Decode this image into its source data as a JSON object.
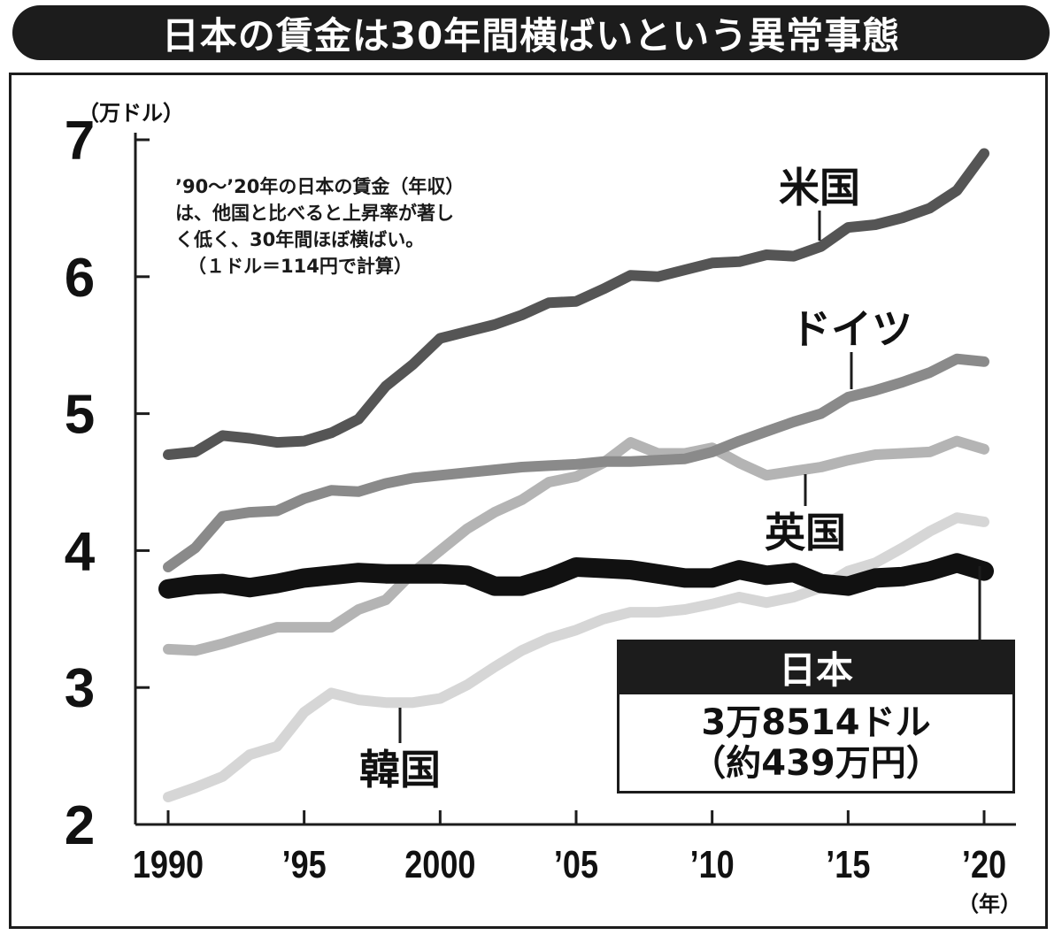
{
  "title": "日本の賃金は30年間横ばいという異常事態",
  "note": [
    "’90～’20年の日本の賃金（年収）",
    "は、他国と比べると上昇率が著し",
    "く低く、30年間ほぼ横ばい。",
    "（１ドル＝114円で計算）"
  ],
  "callout": {
    "heading": "日本",
    "value_line": "3万8514ドル",
    "yen_line": "（約439万円）"
  },
  "colors": {
    "米国": "#555555",
    "ドイツ": "#8a8a8a",
    "英国": "#b4b4b4",
    "韓国": "#d6d6d6",
    "日本": "#111111"
  },
  "chart_data": {
    "type": "line",
    "ylabel": "（万ドル）",
    "xlabel": "（年）",
    "ylim": [
      2,
      7
    ],
    "yticks": [
      "2",
      "3",
      "4",
      "5",
      "6",
      "7"
    ],
    "x_ticks": [
      {
        "year": 1990,
        "label": "1990"
      },
      {
        "year": 1995,
        "label": "’95"
      },
      {
        "year": 2000,
        "label": "2000"
      },
      {
        "year": 2005,
        "label": "’05"
      },
      {
        "year": 2010,
        "label": "’10"
      },
      {
        "year": 2015,
        "label": "’15"
      },
      {
        "year": 2020,
        "label": "’20"
      }
    ],
    "x": [
      1990,
      1991,
      1992,
      1993,
      1994,
      1995,
      1996,
      1997,
      1998,
      1999,
      2000,
      2001,
      2002,
      2003,
      2004,
      2005,
      2006,
      2007,
      2008,
      2009,
      2010,
      2011,
      2012,
      2013,
      2014,
      2015,
      2016,
      2017,
      2018,
      2019,
      2020
    ],
    "grid": false,
    "series": [
      {
        "name": "米国",
        "values": [
          4.7,
          4.72,
          4.84,
          4.82,
          4.79,
          4.8,
          4.86,
          4.96,
          5.2,
          5.36,
          5.55,
          5.6,
          5.65,
          5.72,
          5.81,
          5.82,
          5.91,
          6.01,
          6.0,
          6.05,
          6.1,
          6.11,
          6.16,
          6.15,
          6.22,
          6.36,
          6.38,
          6.43,
          6.5,
          6.63,
          6.9
        ]
      },
      {
        "name": "ドイツ",
        "values": [
          3.88,
          4.02,
          4.25,
          4.28,
          4.29,
          4.38,
          4.44,
          4.43,
          4.49,
          4.53,
          4.55,
          4.57,
          4.59,
          4.61,
          4.62,
          4.63,
          4.65,
          4.65,
          4.66,
          4.67,
          4.72,
          4.8,
          4.87,
          4.94,
          5.0,
          5.12,
          5.17,
          5.23,
          5.3,
          5.4,
          5.38
        ]
      },
      {
        "name": "英国",
        "values": [
          3.28,
          3.27,
          3.32,
          3.38,
          3.44,
          3.44,
          3.44,
          3.57,
          3.64,
          3.84,
          4.0,
          4.16,
          4.28,
          4.37,
          4.5,
          4.54,
          4.64,
          4.79,
          4.71,
          4.71,
          4.75,
          4.64,
          4.55,
          4.58,
          4.61,
          4.66,
          4.7,
          4.71,
          4.72,
          4.8,
          4.74
        ]
      },
      {
        "name": "韓国",
        "values": [
          2.2,
          2.27,
          2.35,
          2.51,
          2.57,
          2.82,
          2.96,
          2.91,
          2.89,
          2.89,
          2.92,
          3.02,
          3.15,
          3.27,
          3.36,
          3.42,
          3.5,
          3.55,
          3.55,
          3.57,
          3.61,
          3.66,
          3.62,
          3.66,
          3.73,
          3.85,
          3.91,
          4.02,
          4.14,
          4.24,
          4.21
        ]
      },
      {
        "name": "日本",
        "values": [
          3.72,
          3.75,
          3.76,
          3.73,
          3.76,
          3.8,
          3.82,
          3.84,
          3.83,
          3.83,
          3.83,
          3.82,
          3.74,
          3.74,
          3.8,
          3.88,
          3.87,
          3.86,
          3.83,
          3.8,
          3.8,
          3.86,
          3.82,
          3.84,
          3.76,
          3.74,
          3.8,
          3.81,
          3.85,
          3.91,
          3.85
        ]
      }
    ],
    "series_labels": {
      "米国": "米国",
      "ドイツ": "ドイツ",
      "英国": "英国",
      "韓国": "韓国"
    }
  }
}
